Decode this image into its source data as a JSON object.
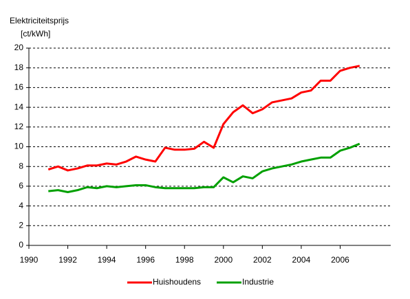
{
  "chart_data": {
    "type": "line",
    "title": "Elektriciteitsprijs",
    "ylabel": "[ct/kWh]",
    "x": [
      1991,
      1991.5,
      1992,
      1992.5,
      1993,
      1993.5,
      1994,
      1994.5,
      1995,
      1995.5,
      1996,
      1996.5,
      1997,
      1997.5,
      1998,
      1998.5,
      1999,
      1999.5,
      2000,
      2000.5,
      2001,
      2001.5,
      2002,
      2002.5,
      2003,
      2003.5,
      2004,
      2004.5,
      2005,
      2005.5,
      2006,
      2006.5,
      2007
    ],
    "series": [
      {
        "name": "Huishoudens",
        "color": "#ff0000",
        "values": [
          7.7,
          8.0,
          7.6,
          7.8,
          8.1,
          8.1,
          8.3,
          8.2,
          8.5,
          9.0,
          8.7,
          8.5,
          9.9,
          9.7,
          9.7,
          9.8,
          10.5,
          9.9,
          12.3,
          13.5,
          14.2,
          13.4,
          13.8,
          14.5,
          14.7,
          14.9,
          15.5,
          15.7,
          16.7,
          16.7,
          17.7,
          18.0,
          18.2
        ]
      },
      {
        "name": "Industrie",
        "color": "#00a000",
        "values": [
          5.5,
          5.6,
          5.4,
          5.6,
          5.9,
          5.8,
          6.0,
          5.9,
          6.0,
          6.1,
          6.1,
          5.9,
          5.8,
          5.8,
          5.8,
          5.8,
          5.9,
          5.9,
          6.9,
          6.4,
          7.0,
          6.8,
          7.5,
          7.8,
          8.0,
          8.2,
          8.5,
          8.7,
          8.9,
          8.9,
          9.6,
          9.9,
          10.3
        ]
      }
    ],
    "xlim": [
      1990,
      2008.6
    ],
    "xticks": [
      1990,
      1992,
      1994,
      1996,
      1998,
      2000,
      2002,
      2004,
      2006
    ],
    "ylim": [
      0,
      20
    ],
    "yticks": [
      0,
      2,
      4,
      6,
      8,
      10,
      12,
      14,
      16,
      18,
      20
    ],
    "grid": true,
    "legend": "bottom"
  }
}
